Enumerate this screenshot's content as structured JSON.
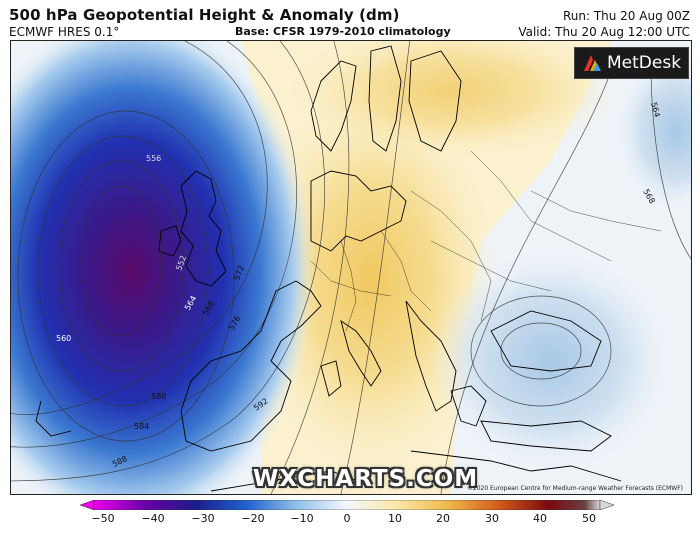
{
  "header": {
    "title": "500 hPa Geopotential Height & Anomaly (dm)",
    "model": "ECMWF HRES 0.1°",
    "base": "Base: CFSR 1979-2010 climatology",
    "run": "Run: Thu 20 Aug 00Z",
    "valid": "Valid: Thu 20 Aug 12:00 UTC"
  },
  "logo": {
    "brand": "MetDesk",
    "icon": "metdesk-logo-icon"
  },
  "watermark": "WXCHARTS.COM",
  "copyright": "©2020 European Centre for Medium-range Weather Forecasts (ECMWF)",
  "contour_labels": [
    "564",
    "568",
    "572",
    "576",
    "580",
    "584",
    "588",
    "592",
    "556",
    "552",
    "560",
    "564",
    "568",
    "580",
    "584",
    "588"
  ],
  "colorbar": {
    "ticks": [
      "−50",
      "−40",
      "−30",
      "−20",
      "−10",
      "0",
      "10",
      "20",
      "30",
      "40",
      "50"
    ],
    "colors": [
      "#d100d1",
      "#4b0082",
      "#1f1fa0",
      "#2a5bd6",
      "#7fb0e6",
      "#e8f2fa",
      "#fbeec0",
      "#f0c860",
      "#d98a2a",
      "#b02a10",
      "#6a0010",
      "#d0d0d0"
    ]
  }
}
